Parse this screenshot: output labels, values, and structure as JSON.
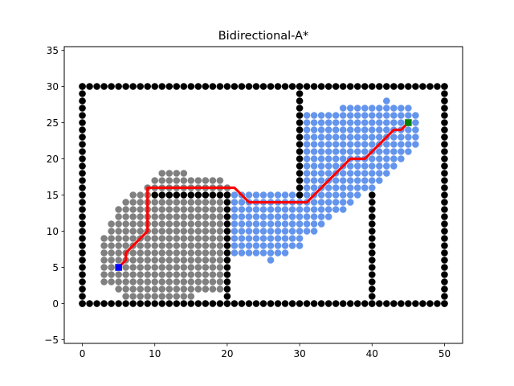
{
  "chart_data": {
    "type": "scatter",
    "title": "Bidirectional-A*",
    "xlabel": "",
    "ylabel": "",
    "xlim": [
      -2.5,
      52.5
    ],
    "ylim": [
      -5.5,
      35.5
    ],
    "xticks": [
      0,
      10,
      20,
      30,
      40,
      50
    ],
    "yticks": [
      -5,
      0,
      5,
      10,
      15,
      20,
      25,
      30,
      35
    ],
    "grid": false,
    "legend": "none",
    "colors": {
      "obstacle": "#000000",
      "forward_closed": "#808080",
      "backward_closed": "#6495ED",
      "path": "#FF0000",
      "start": "#0000FF",
      "goal": "#008000"
    },
    "start": [
      5,
      5
    ],
    "goal": [
      45,
      25
    ],
    "obstacle_segments": [
      {
        "from": [
          0,
          0
        ],
        "to": [
          50,
          0
        ]
      },
      {
        "from": [
          0,
          30
        ],
        "to": [
          50,
          30
        ]
      },
      {
        "from": [
          0,
          0
        ],
        "to": [
          0,
          30
        ]
      },
      {
        "from": [
          50,
          0
        ],
        "to": [
          50,
          30
        ]
      },
      {
        "from": [
          10,
          15
        ],
        "to": [
          20,
          15
        ]
      },
      {
        "from": [
          20,
          0
        ],
        "to": [
          20,
          15
        ]
      },
      {
        "from": [
          30,
          15
        ],
        "to": [
          30,
          30
        ]
      },
      {
        "from": [
          40,
          0
        ],
        "to": [
          40,
          15
        ]
      }
    ],
    "forward_closed_rows": [
      {
        "y": 1,
        "x_from": 6,
        "x_to": 15
      },
      {
        "y": 2,
        "x_from": 5,
        "x_to": 19
      },
      {
        "y": 3,
        "x_from": 3,
        "x_to": 19
      },
      {
        "y": 4,
        "x_from": 3,
        "x_to": 19
      },
      {
        "y": 5,
        "x_from": 3,
        "x_to": 19
      },
      {
        "y": 6,
        "x_from": 3,
        "x_to": 19
      },
      {
        "y": 7,
        "x_from": 3,
        "x_to": 19
      },
      {
        "y": 8,
        "x_from": 3,
        "x_to": 19
      },
      {
        "y": 9,
        "x_from": 3,
        "x_to": 19
      },
      {
        "y": 10,
        "x_from": 4,
        "x_to": 19
      },
      {
        "y": 11,
        "x_from": 4,
        "x_to": 19
      },
      {
        "y": 12,
        "x_from": 5,
        "x_to": 19
      },
      {
        "y": 13,
        "x_from": 5,
        "x_to": 19
      },
      {
        "y": 14,
        "x_from": 6,
        "x_to": 19
      },
      {
        "y": 15,
        "x_from": 7,
        "x_to": 9
      },
      {
        "y": 16,
        "x_from": 9,
        "x_to": 20
      },
      {
        "y": 17,
        "x_from": 10,
        "x_to": 19
      },
      {
        "y": 18,
        "x_from": 11,
        "x_to": 14
      }
    ],
    "backward_closed_rows": [
      {
        "y": 6,
        "x_from": 26,
        "x_to": 26
      },
      {
        "y": 7,
        "x_from": 21,
        "x_to": 28
      },
      {
        "y": 8,
        "x_from": 21,
        "x_to": 30
      },
      {
        "y": 9,
        "x_from": 21,
        "x_to": 30
      },
      {
        "y": 10,
        "x_from": 21,
        "x_to": 32
      },
      {
        "y": 11,
        "x_from": 21,
        "x_to": 33
      },
      {
        "y": 12,
        "x_from": 21,
        "x_to": 34
      },
      {
        "y": 13,
        "x_from": 21,
        "x_to": 36
      },
      {
        "y": 14,
        "x_from": 21,
        "x_to": 37
      },
      {
        "y": 15,
        "x_from": 21,
        "x_to": 38
      },
      {
        "y": 16,
        "x_from": 31,
        "x_to": 40
      },
      {
        "y": 17,
        "x_from": 31,
        "x_to": 41
      },
      {
        "y": 18,
        "x_from": 31,
        "x_to": 42
      },
      {
        "y": 19,
        "x_from": 31,
        "x_to": 43
      },
      {
        "y": 20,
        "x_from": 31,
        "x_to": 44
      },
      {
        "y": 21,
        "x_from": 31,
        "x_to": 45
      },
      {
        "y": 22,
        "x_from": 31,
        "x_to": 46
      },
      {
        "y": 23,
        "x_from": 31,
        "x_to": 46
      },
      {
        "y": 24,
        "x_from": 31,
        "x_to": 46
      },
      {
        "y": 25,
        "x_from": 31,
        "x_to": 46
      },
      {
        "y": 26,
        "x_from": 31,
        "x_to": 46
      },
      {
        "y": 27,
        "x_from": 36,
        "x_to": 45
      },
      {
        "y": 28,
        "x_from": 42,
        "x_to": 42
      }
    ],
    "path": [
      [
        5,
        5
      ],
      [
        6,
        6
      ],
      [
        6,
        7
      ],
      [
        7,
        8
      ],
      [
        8,
        9
      ],
      [
        9,
        10
      ],
      [
        9,
        11
      ],
      [
        9,
        12
      ],
      [
        9,
        13
      ],
      [
        9,
        14
      ],
      [
        9,
        15
      ],
      [
        9,
        16
      ],
      [
        10,
        16
      ],
      [
        11,
        16
      ],
      [
        12,
        16
      ],
      [
        13,
        16
      ],
      [
        14,
        16
      ],
      [
        15,
        16
      ],
      [
        16,
        16
      ],
      [
        17,
        16
      ],
      [
        18,
        16
      ],
      [
        19,
        16
      ],
      [
        20,
        16
      ],
      [
        21,
        16
      ],
      [
        22,
        15
      ],
      [
        23,
        14
      ],
      [
        24,
        14
      ],
      [
        25,
        14
      ],
      [
        26,
        14
      ],
      [
        27,
        14
      ],
      [
        28,
        14
      ],
      [
        29,
        14
      ],
      [
        30,
        14
      ],
      [
        31,
        14
      ],
      [
        32,
        15
      ],
      [
        33,
        16
      ],
      [
        34,
        17
      ],
      [
        35,
        18
      ],
      [
        36,
        19
      ],
      [
        37,
        20
      ],
      [
        38,
        20
      ],
      [
        39,
        20
      ],
      [
        40,
        21
      ],
      [
        41,
        22
      ],
      [
        42,
        23
      ],
      [
        43,
        24
      ],
      [
        44,
        24
      ],
      [
        45,
        25
      ]
    ]
  }
}
